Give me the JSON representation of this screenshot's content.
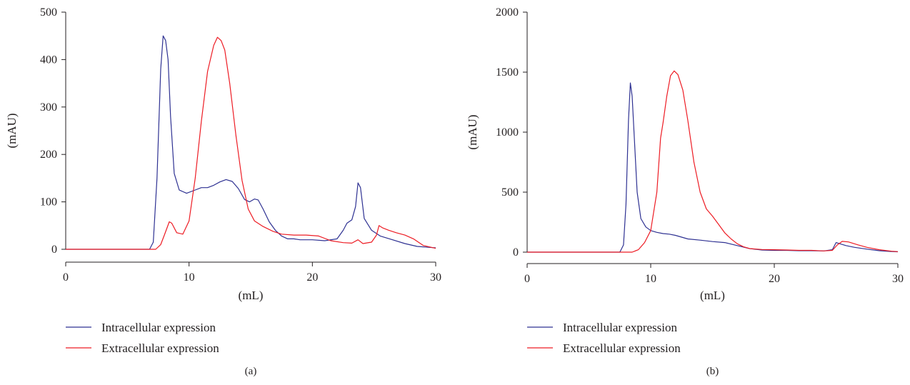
{
  "chart_data": [
    {
      "type": "line",
      "panel_label": "(a)",
      "xlabel": "(mL)",
      "ylabel": "(mAU)",
      "xlim": [
        0,
        30
      ],
      "ylim": [
        0,
        500
      ],
      "xticks": [
        0,
        10,
        20,
        30
      ],
      "yticks": [
        0,
        100,
        200,
        300,
        400,
        500
      ],
      "grid": false,
      "legend_position": "bottom-left",
      "series": [
        {
          "name": "Intracellular expression",
          "color": "#2e3192",
          "points": [
            [
              0,
              0
            ],
            [
              6.8,
              0
            ],
            [
              7.1,
              15
            ],
            [
              7.4,
              150
            ],
            [
              7.7,
              380
            ],
            [
              7.9,
              450
            ],
            [
              8.1,
              440
            ],
            [
              8.3,
              400
            ],
            [
              8.5,
              280
            ],
            [
              8.8,
              160
            ],
            [
              9.2,
              125
            ],
            [
              9.8,
              118
            ],
            [
              10.5,
              125
            ],
            [
              11.0,
              130
            ],
            [
              11.5,
              130
            ],
            [
              12.0,
              135
            ],
            [
              12.5,
              142
            ],
            [
              13.0,
              147
            ],
            [
              13.5,
              143
            ],
            [
              14.0,
              128
            ],
            [
              14.5,
              105
            ],
            [
              14.9,
              100
            ],
            [
              15.3,
              106
            ],
            [
              15.6,
              104
            ],
            [
              16.0,
              85
            ],
            [
              16.5,
              58
            ],
            [
              17.0,
              40
            ],
            [
              17.5,
              28
            ],
            [
              18.0,
              22
            ],
            [
              18.5,
              22
            ],
            [
              19.0,
              20
            ],
            [
              20.0,
              20
            ],
            [
              21.0,
              18
            ],
            [
              22.0,
              22
            ],
            [
              22.5,
              40
            ],
            [
              22.8,
              55
            ],
            [
              23.2,
              62
            ],
            [
              23.5,
              90
            ],
            [
              23.7,
              140
            ],
            [
              23.9,
              130
            ],
            [
              24.2,
              65
            ],
            [
              24.8,
              40
            ],
            [
              25.5,
              28
            ],
            [
              26.5,
              20
            ],
            [
              27.5,
              12
            ],
            [
              28.5,
              6
            ],
            [
              29.5,
              4
            ],
            [
              30,
              3
            ]
          ]
        },
        {
          "name": "Extracellular expression",
          "color": "#ed1c24",
          "points": [
            [
              0,
              0
            ],
            [
              7.3,
              0
            ],
            [
              7.7,
              10
            ],
            [
              8.0,
              30
            ],
            [
              8.4,
              58
            ],
            [
              8.6,
              55
            ],
            [
              9.0,
              35
            ],
            [
              9.5,
              32
            ],
            [
              10.0,
              60
            ],
            [
              10.5,
              150
            ],
            [
              11.0,
              270
            ],
            [
              11.5,
              375
            ],
            [
              12.0,
              430
            ],
            [
              12.3,
              447
            ],
            [
              12.6,
              440
            ],
            [
              12.9,
              420
            ],
            [
              13.3,
              350
            ],
            [
              13.8,
              240
            ],
            [
              14.3,
              145
            ],
            [
              14.8,
              85
            ],
            [
              15.3,
              60
            ],
            [
              16.0,
              48
            ],
            [
              16.8,
              38
            ],
            [
              17.5,
              32
            ],
            [
              18.5,
              30
            ],
            [
              19.5,
              30
            ],
            [
              20.5,
              28
            ],
            [
              21.5,
              18
            ],
            [
              22.5,
              14
            ],
            [
              23.2,
              13
            ],
            [
              23.7,
              20
            ],
            [
              24.1,
              12
            ],
            [
              24.8,
              15
            ],
            [
              25.2,
              30
            ],
            [
              25.4,
              50
            ],
            [
              25.7,
              45
            ],
            [
              26.2,
              40
            ],
            [
              26.8,
              35
            ],
            [
              27.5,
              30
            ],
            [
              28.2,
              22
            ],
            [
              29.0,
              8
            ],
            [
              30,
              2
            ]
          ]
        }
      ]
    },
    {
      "type": "line",
      "panel_label": "(b)",
      "xlabel": "(mL)",
      "ylabel": "(mAU)",
      "xlim": [
        0,
        30
      ],
      "ylim": [
        0,
        2000
      ],
      "xticks": [
        0,
        10,
        20,
        30
      ],
      "yticks": [
        0,
        500,
        1000,
        1500,
        2000
      ],
      "grid": false,
      "legend_position": "bottom-left",
      "series": [
        {
          "name": "Intracellular expression",
          "color": "#2e3192",
          "points": [
            [
              0,
              0
            ],
            [
              7.5,
              0
            ],
            [
              7.8,
              60
            ],
            [
              8.0,
              400
            ],
            [
              8.2,
              1100
            ],
            [
              8.35,
              1410
            ],
            [
              8.5,
              1300
            ],
            [
              8.7,
              900
            ],
            [
              8.9,
              500
            ],
            [
              9.2,
              280
            ],
            [
              9.6,
              210
            ],
            [
              10.0,
              180
            ],
            [
              10.5,
              165
            ],
            [
              11.0,
              155
            ],
            [
              11.5,
              150
            ],
            [
              12.0,
              140
            ],
            [
              12.5,
              125
            ],
            [
              13.0,
              110
            ],
            [
              14.0,
              100
            ],
            [
              15.0,
              88
            ],
            [
              16.0,
              80
            ],
            [
              17.0,
              55
            ],
            [
              18.0,
              30
            ],
            [
              19.0,
              18
            ],
            [
              20.0,
              15
            ],
            [
              21.0,
              15
            ],
            [
              22.0,
              12
            ],
            [
              23.0,
              12
            ],
            [
              24.0,
              10
            ],
            [
              24.7,
              20
            ],
            [
              25.0,
              80
            ],
            [
              25.3,
              70
            ],
            [
              25.8,
              55
            ],
            [
              26.5,
              40
            ],
            [
              27.5,
              25
            ],
            [
              28.5,
              12
            ],
            [
              29.5,
              5
            ],
            [
              30,
              3
            ]
          ]
        },
        {
          "name": "Extracellular expression",
          "color": "#ed1c24",
          "points": [
            [
              0,
              0
            ],
            [
              8.5,
              0
            ],
            [
              9.0,
              20
            ],
            [
              9.5,
              80
            ],
            [
              10.0,
              180
            ],
            [
              10.5,
              500
            ],
            [
              10.8,
              950
            ],
            [
              11.0,
              1080
            ],
            [
              11.3,
              1300
            ],
            [
              11.6,
              1470
            ],
            [
              11.9,
              1510
            ],
            [
              12.2,
              1480
            ],
            [
              12.6,
              1350
            ],
            [
              13.0,
              1100
            ],
            [
              13.5,
              750
            ],
            [
              14.0,
              500
            ],
            [
              14.5,
              360
            ],
            [
              15.0,
              300
            ],
            [
              15.5,
              230
            ],
            [
              16.0,
              160
            ],
            [
              16.5,
              110
            ],
            [
              17.0,
              70
            ],
            [
              17.5,
              45
            ],
            [
              18.0,
              30
            ],
            [
              19.0,
              22
            ],
            [
              20.0,
              20
            ],
            [
              21.0,
              18
            ],
            [
              22.0,
              15
            ],
            [
              23.0,
              15
            ],
            [
              24.0,
              10
            ],
            [
              24.7,
              15
            ],
            [
              25.1,
              60
            ],
            [
              25.5,
              90
            ],
            [
              26.0,
              85
            ],
            [
              26.8,
              60
            ],
            [
              27.5,
              40
            ],
            [
              28.5,
              20
            ],
            [
              29.5,
              8
            ],
            [
              30,
              4
            ]
          ]
        }
      ]
    }
  ]
}
